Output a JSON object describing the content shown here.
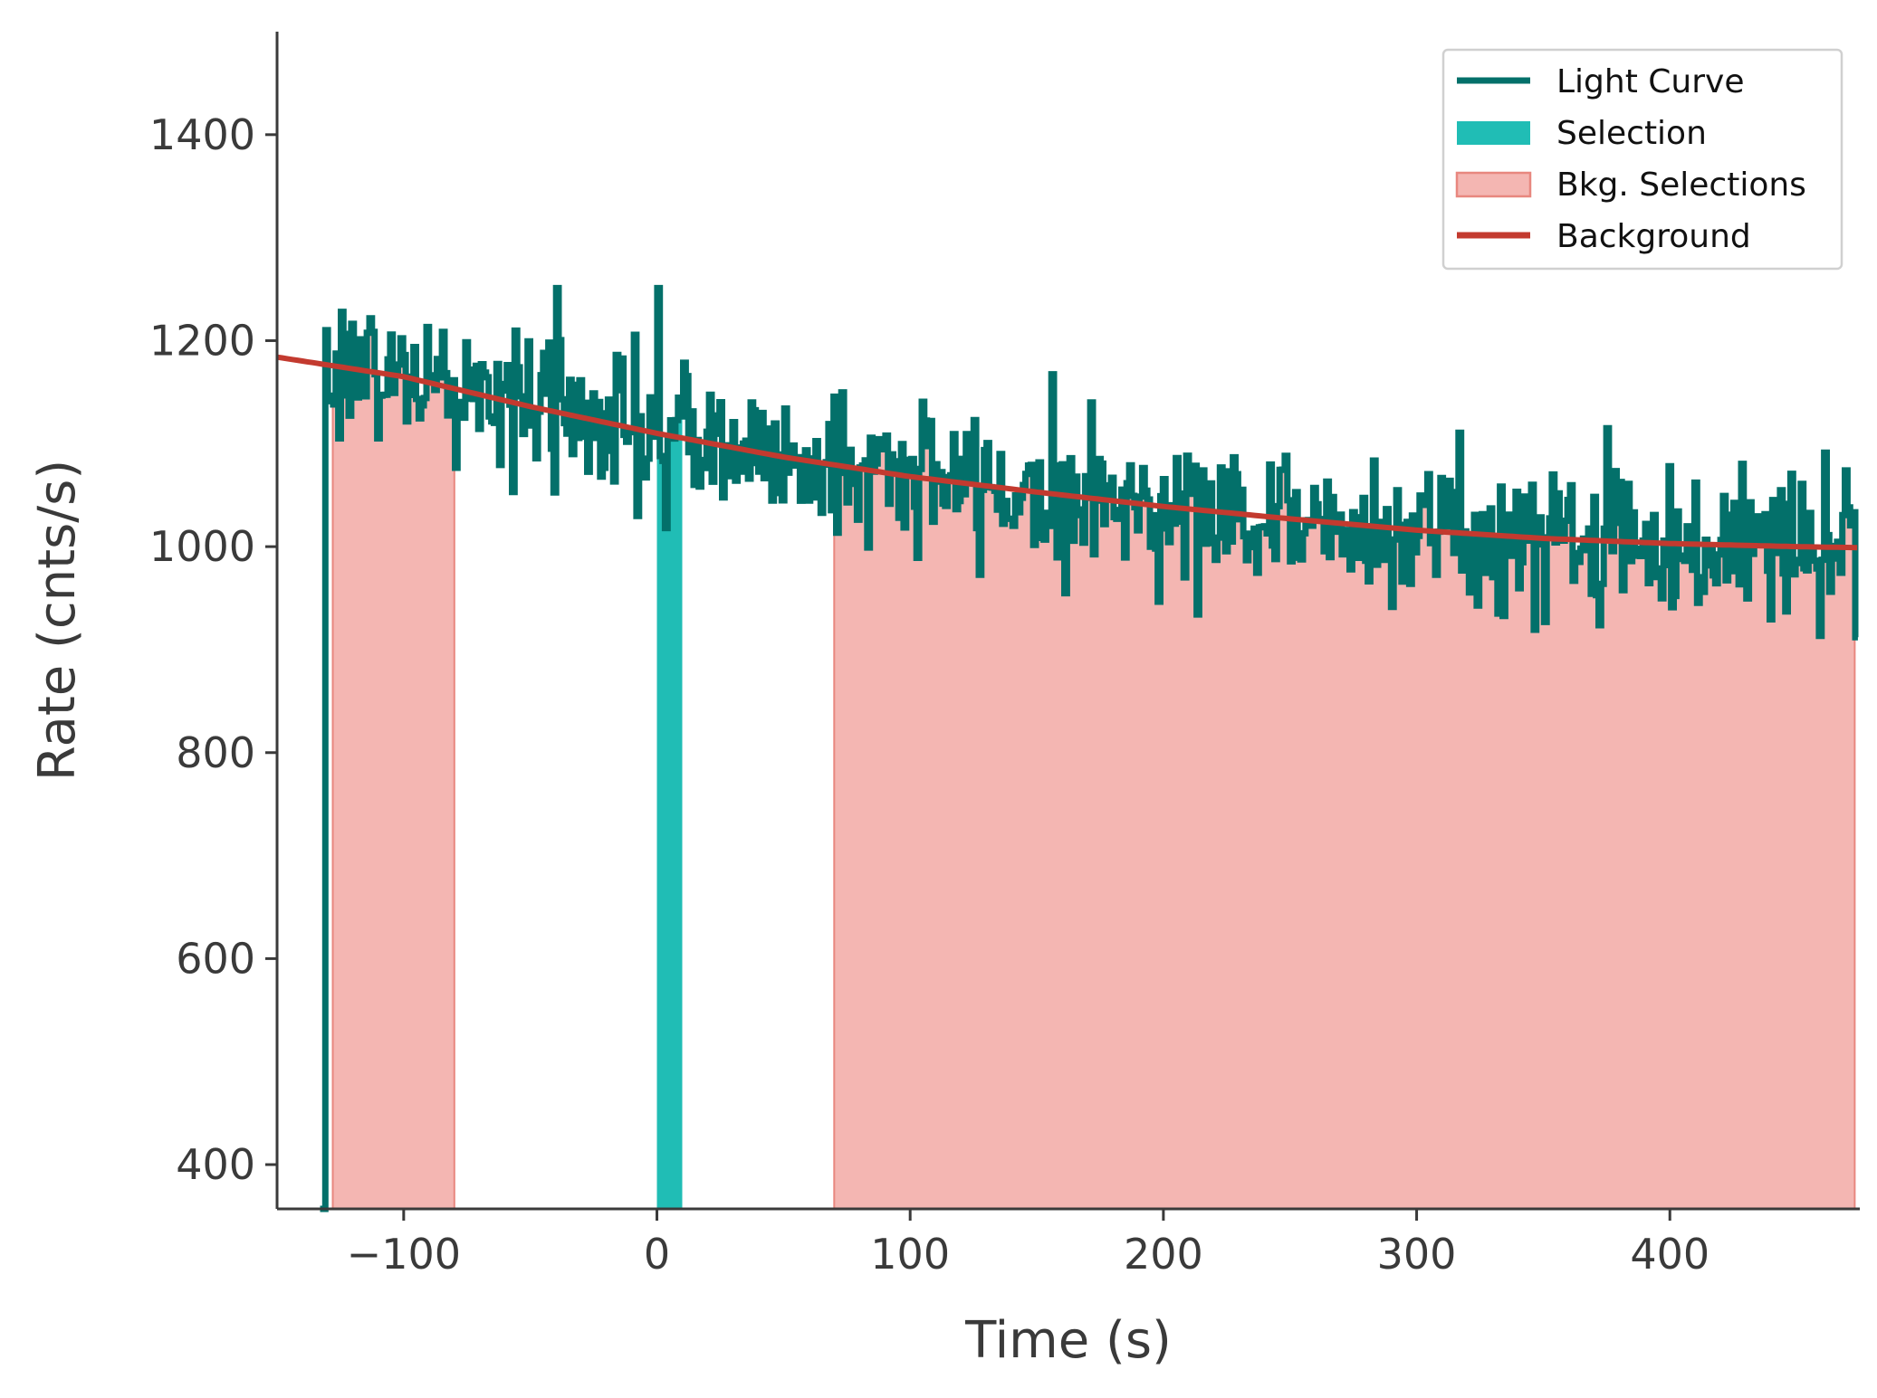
{
  "chart_data": {
    "type": "line",
    "xlabel": "Time (s)",
    "ylabel": "Rate (cnts/s)",
    "xlim": [
      -150,
      475
    ],
    "ylim": [
      357,
      1500
    ],
    "xticks": [
      -100,
      0,
      100,
      200,
      300,
      400
    ],
    "xtick_labels": [
      "−100",
      "0",
      "100",
      "200",
      "300",
      "400"
    ],
    "yticks": [
      400,
      600,
      800,
      1000,
      1200,
      1400
    ],
    "ytick_labels": [
      "400",
      "600",
      "800",
      "1000",
      "1200",
      "1400"
    ],
    "grid": false,
    "legend_position": "top-right",
    "legend": [
      {
        "label": "Light Curve",
        "kind": "line",
        "color": "#03706a"
      },
      {
        "label": "Selection",
        "kind": "patch",
        "color": "#20bdb5"
      },
      {
        "label": "Bkg. Selections",
        "kind": "patch",
        "color": "#f4b6b2",
        "edge": "#e8877f"
      },
      {
        "label": "Background",
        "kind": "line",
        "color": "#c33a2f"
      }
    ],
    "light_curve": {
      "name": "Light Curve",
      "color": "#03706a",
      "bin_width": 1.024,
      "t_start": -133,
      "t_end": 474,
      "initial_rate": 357,
      "rise_time": -131,
      "trend": "follows Background model with ~±40 cnts/s noise",
      "peaks": [
        {
          "x": -125,
          "y": 1228
        },
        {
          "x": -40,
          "y": 1251
        },
        {
          "x": 0,
          "y": 1251
        },
        {
          "x": 375,
          "y": 1115
        }
      ],
      "dips": [
        {
          "x": 3,
          "y": 1018
        },
        {
          "x": 332,
          "y": 935
        },
        {
          "x": 474,
          "y": 912
        }
      ]
    },
    "selection": {
      "name": "Selection",
      "color": "#20bdb5",
      "x_range": [
        0,
        10
      ]
    },
    "bkg_selections": {
      "name": "Bkg. Selections",
      "color": "#f4b6b2",
      "edge": "#e8877f",
      "ranges": [
        [
          -128,
          -80
        ],
        [
          70,
          473
        ]
      ]
    },
    "background_model": {
      "name": "Background",
      "color": "#c33a2f",
      "x": [
        -150,
        -100,
        -50,
        0,
        50,
        100,
        150,
        200,
        250,
        300,
        350,
        400,
        450,
        475
      ],
      "y": [
        1184,
        1165,
        1136,
        1110,
        1087,
        1068,
        1053,
        1039,
        1027,
        1016,
        1008,
        1003,
        1000,
        999
      ]
    }
  }
}
